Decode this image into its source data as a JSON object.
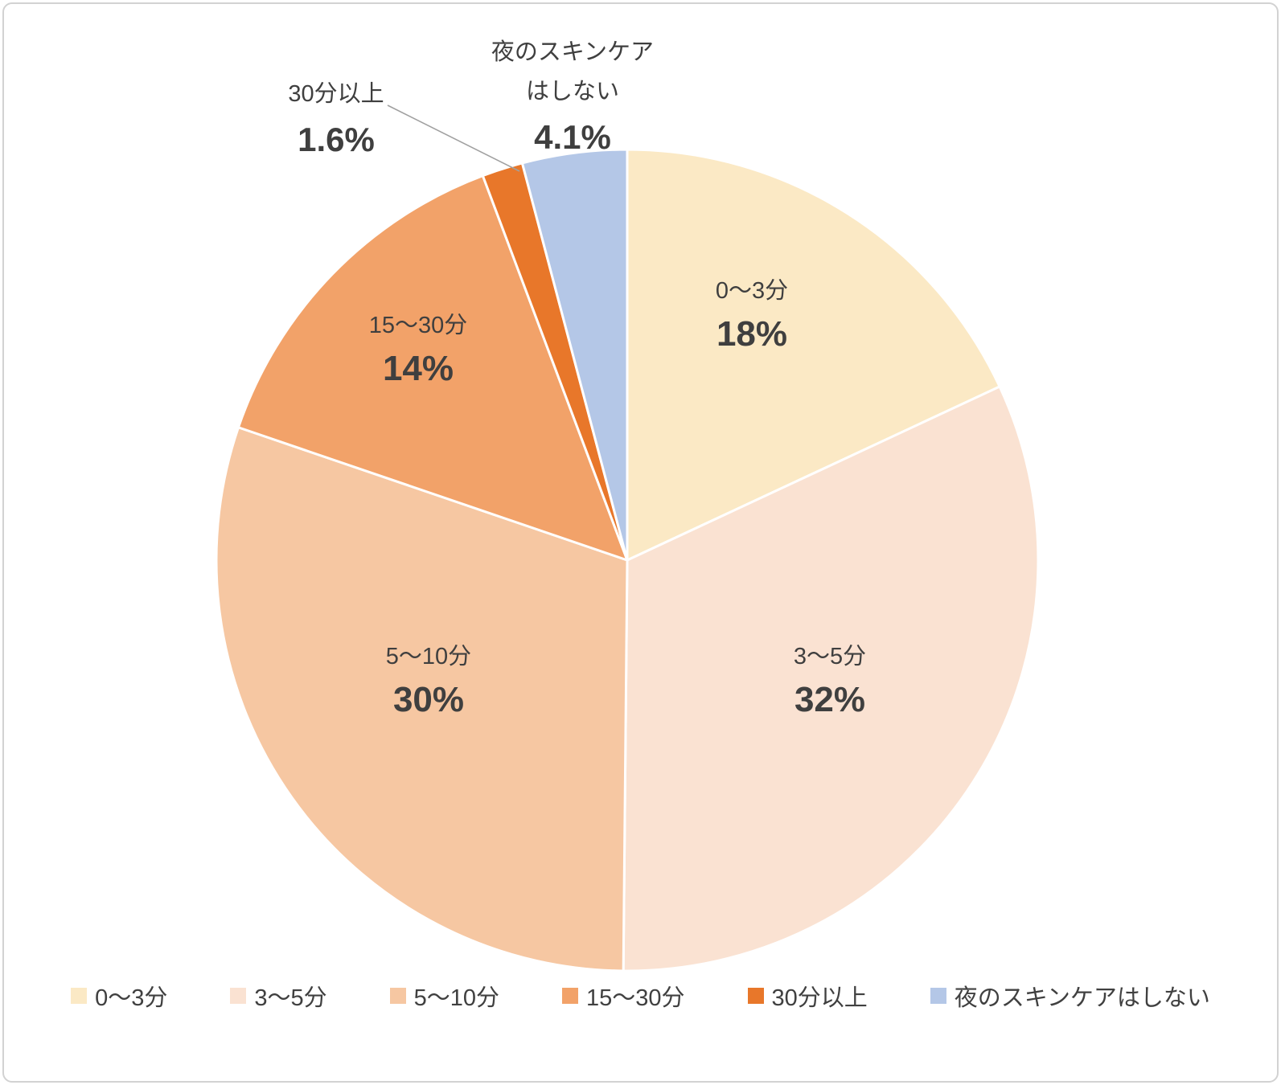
{
  "chart_data": {
    "type": "pie",
    "title": "",
    "start_angle_deg": -90,
    "direction": "clockwise",
    "legend_position": "bottom",
    "series": [
      {
        "label": "0〜3分",
        "value": 18,
        "pct_label": "18%",
        "color": "#FBE9C5",
        "label_placement": "inside"
      },
      {
        "label": "3〜5分",
        "value": 32,
        "pct_label": "32%",
        "color": "#FAE2D2",
        "label_placement": "inside"
      },
      {
        "label": "5〜10分",
        "value": 30,
        "pct_label": "30%",
        "color": "#F6C7A2",
        "label_placement": "inside"
      },
      {
        "label": "15〜30分",
        "value": 14,
        "pct_label": "14%",
        "color": "#F2A269",
        "label_placement": "inside"
      },
      {
        "label": "30分以上",
        "value": 1.6,
        "pct_label": "1.6%",
        "color": "#E8772A",
        "label_placement": "outside"
      },
      {
        "label": "夜のスキンケアはしない",
        "label_line1": "夜のスキンケア",
        "label_line2": "はしない",
        "value": 4.1,
        "pct_label": "4.1%",
        "color": "#B4C7E7",
        "label_placement": "outside"
      }
    ],
    "slice_border_color": "#ffffff",
    "leader_line_color": "#a0a0a0",
    "text_color": "#3f3f3f"
  }
}
